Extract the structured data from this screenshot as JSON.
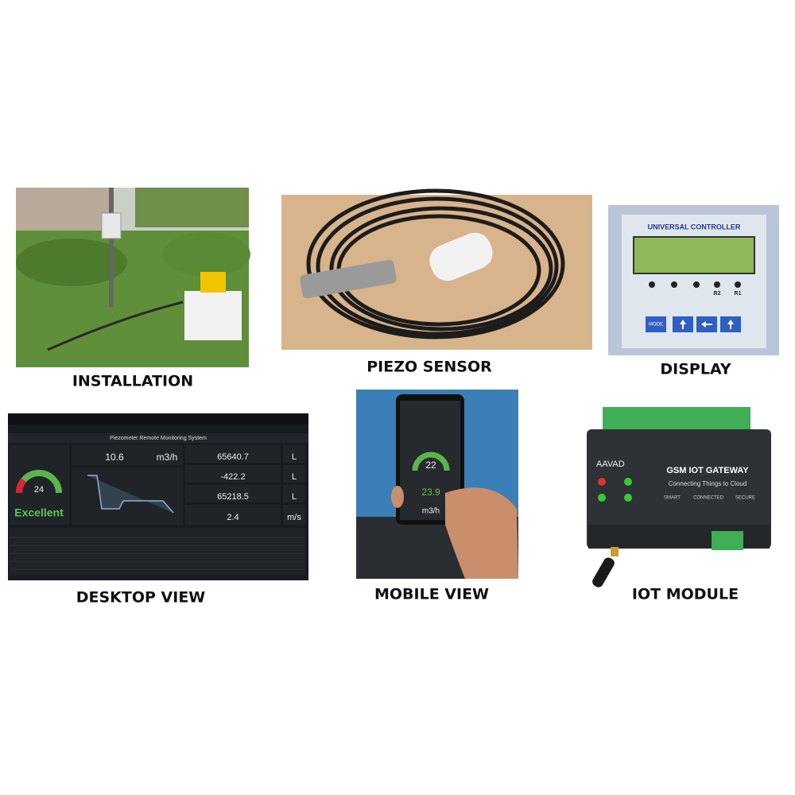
{
  "panels": [
    {
      "caption": "INSTALLATION"
    },
    {
      "caption": "PIEZO SENSOR"
    },
    {
      "caption": "DISPLAY",
      "title": "UNIVERSAL CONTROLLER",
      "buttons": [
        "MODE",
        "R2",
        "R1"
      ]
    },
    {
      "caption": "DESKTOP VIEW",
      "title": "Piezometer Remote Monitoring System",
      "gauge": "24",
      "status": "Excellent",
      "readings": [
        {
          "value": "10.6",
          "unit": "m3/h"
        },
        {
          "value": "65640.7",
          "unit": "L"
        },
        {
          "value": "-422.2",
          "unit": "L"
        },
        {
          "value": "65218.5",
          "unit": "L"
        },
        {
          "value": "2.4",
          "unit": "m/s"
        }
      ]
    },
    {
      "caption": "MOBILE VIEW",
      "gauge": "22",
      "value": "23.9",
      "unit": "m3/h"
    },
    {
      "caption": "IOT MODULE",
      "brand": "AAVAD",
      "title": "GSM IOT GATEWAY",
      "tagline": "Connecting Things to Cloud",
      "badges": [
        "SMART",
        "CONNECTED",
        "SECURE"
      ]
    }
  ]
}
